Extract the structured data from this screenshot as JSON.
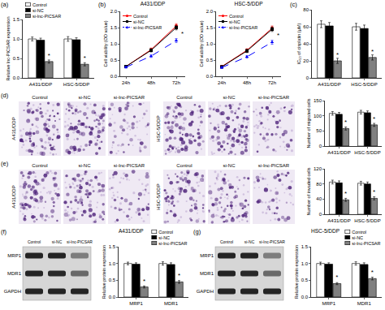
{
  "chart_data": [
    {
      "type": "bar",
      "panel": "(a)",
      "y_label": "Relative lnc-PICSAR expression",
      "categories": [
        "A431/DDP",
        "HSC-5/DDP"
      ],
      "series": [
        {
          "name": "Control",
          "color": "#ffffff",
          "values": [
            1.0,
            1.0
          ],
          "errors": [
            0.05,
            0.06
          ]
        },
        {
          "name": "si-NC",
          "color": "#000000",
          "values": [
            0.97,
            0.98
          ],
          "errors": [
            0.05,
            0.05
          ]
        },
        {
          "name": "si-lnc-PICSAR",
          "color": "#808080",
          "values": [
            0.42,
            0.35
          ],
          "errors": [
            0.04,
            0.04
          ]
        }
      ],
      "ylim": [
        0,
        1.5
      ],
      "yticks": [
        {
          "value": 0,
          "label": "0.0"
        },
        {
          "value": 0.5,
          "label": "0.5"
        },
        {
          "value": 1,
          "label": "1.0"
        },
        {
          "value": 1.5,
          "label": "1.5"
        }
      ],
      "legend": "upper left",
      "annotations": [
        {
          "text": "*",
          "category": "A431/DDP",
          "series": "si-lnc-PICSAR"
        },
        {
          "text": "*",
          "category": "HSC-5/DDP",
          "series": "si-lnc-PICSAR"
        }
      ]
    },
    {
      "type": "line",
      "panel": "(b)",
      "title": "A431/DDP",
      "y_label": "Cell viability (OD value)",
      "categories": [
        "24h",
        "48h",
        "72h"
      ],
      "series": [
        {
          "name": "Control",
          "color": "#ff0000",
          "marker": "circle",
          "line_style": "solid",
          "values": [
            0.3,
            0.82,
            1.55
          ],
          "errors": [
            0.03,
            0.05,
            0.07
          ]
        },
        {
          "name": "si-NC",
          "color": "#000000",
          "marker": "square",
          "line_style": "solid",
          "values": [
            0.3,
            0.8,
            1.5
          ],
          "errors": [
            0.03,
            0.05,
            0.07
          ]
        },
        {
          "name": "si-lnc-PICSAR",
          "color": "#0000ff",
          "marker": "triangle",
          "line_style": "dashed",
          "values": [
            0.28,
            0.62,
            1.1
          ],
          "errors": [
            0.03,
            0.04,
            0.06
          ]
        }
      ],
      "ylim": [
        0,
        2
      ],
      "yticks": [
        {
          "value": 0,
          "label": "0.0"
        },
        {
          "value": 0.5,
          "label": "0.5"
        },
        {
          "value": 1,
          "label": "1.0"
        },
        {
          "value": 1.5,
          "label": "1.5"
        },
        {
          "value": 2,
          "label": "2.0"
        }
      ],
      "legend": "upper left",
      "annotations": [
        {
          "text": "*",
          "category": "72h",
          "series": "si-lnc-PICSAR"
        }
      ]
    },
    {
      "type": "line",
      "title": "HSC-5/DDP",
      "y_label": "Cell viability (OD value)",
      "categories": [
        "24h",
        "48h",
        "72h"
      ],
      "series": [
        {
          "name": "Control",
          "color": "#ff0000",
          "marker": "circle",
          "line_style": "solid",
          "values": [
            0.3,
            0.8,
            1.48
          ],
          "errors": [
            0.03,
            0.05,
            0.07
          ]
        },
        {
          "name": "si-NC",
          "color": "#000000",
          "marker": "square",
          "line_style": "solid",
          "values": [
            0.29,
            0.78,
            1.45
          ],
          "errors": [
            0.03,
            0.05,
            0.07
          ]
        },
        {
          "name": "si-lnc-PICSAR",
          "color": "#0000ff",
          "marker": "triangle",
          "line_style": "dashed",
          "values": [
            0.27,
            0.6,
            1.05
          ],
          "errors": [
            0.03,
            0.04,
            0.06
          ]
        }
      ],
      "ylim": [
        0,
        2
      ],
      "yticks": [
        {
          "value": 0,
          "label": "0.0"
        },
        {
          "value": 0.5,
          "label": "0.5"
        },
        {
          "value": 1,
          "label": "1.0"
        },
        {
          "value": 1.5,
          "label": "1.5"
        },
        {
          "value": 2,
          "label": "2.0"
        }
      ],
      "legend": "upper left",
      "annotations": [
        {
          "text": "*",
          "category": "72h",
          "series": "si-lnc-PICSAR"
        }
      ]
    },
    {
      "type": "bar",
      "panel": "(c)",
      "y_label": "IC₅₀ of cisplatin (μM)",
      "categories": [
        "A431/DDP",
        "HSC-5/DDP"
      ],
      "series": [
        {
          "name": "Control",
          "color": "#ffffff",
          "values": [
            63,
            60
          ],
          "errors": [
            4,
            4
          ]
        },
        {
          "name": "si-NC",
          "color": "#000000",
          "values": [
            61,
            58
          ],
          "errors": [
            4,
            4
          ]
        },
        {
          "name": "si-lnc-PICSAR",
          "color": "#808080",
          "values": [
            20,
            24
          ],
          "errors": [
            3,
            3
          ]
        }
      ],
      "ylim": [
        0,
        80
      ],
      "yticks": [
        0,
        20,
        40,
        60,
        80
      ],
      "annotations": [
        {
          "text": "*",
          "category": "A431/DDP",
          "series": "si-lnc-PICSAR"
        },
        {
          "text": "*",
          "category": "HSC-5/DDP",
          "series": "si-lnc-PICSAR"
        }
      ]
    },
    {
      "type": "bar",
      "y_label": "Number of migrated cells",
      "categories": [
        "A431/DDP",
        "HSC-5/DDP"
      ],
      "series": [
        {
          "name": "Control",
          "color": "#ffffff",
          "values": [
            108,
            112
          ],
          "errors": [
            6,
            6
          ]
        },
        {
          "name": "si-NC",
          "color": "#000000",
          "values": [
            105,
            110
          ],
          "errors": [
            6,
            6
          ]
        },
        {
          "name": "si-lnc-PICSAR",
          "color": "#808080",
          "values": [
            58,
            70
          ],
          "errors": [
            5,
            5
          ]
        }
      ],
      "ylim": [
        0,
        150
      ],
      "yticks": [
        0,
        50,
        100,
        150
      ],
      "annotations": [
        {
          "text": "*",
          "category": "A431/DDP",
          "series": "si-lnc-PICSAR"
        },
        {
          "text": "*",
          "category": "HSC-5/DDP",
          "series": "si-lnc-PICSAR"
        }
      ]
    },
    {
      "type": "bar",
      "y_label": "Number of invaded cells",
      "categories": [
        "A431/DDP",
        "HSC-5/DDP"
      ],
      "series": [
        {
          "name": "Control",
          "color": "#ffffff",
          "values": [
            85,
            82
          ],
          "errors": [
            5,
            5
          ]
        },
        {
          "name": "si-NC",
          "color": "#000000",
          "values": [
            83,
            80
          ],
          "errors": [
            5,
            5
          ]
        },
        {
          "name": "si-lnc-PICSAR",
          "color": "#808080",
          "values": [
            38,
            42
          ],
          "errors": [
            4,
            4
          ]
        }
      ],
      "ylim": [
        0,
        120
      ],
      "yticks": [
        0,
        40,
        80,
        120
      ],
      "annotations": [
        {
          "text": "*",
          "category": "A431/DDP",
          "series": "si-lnc-PICSAR"
        },
        {
          "text": "*",
          "category": "HSC-5/DDP",
          "series": "si-lnc-PICSAR"
        }
      ]
    },
    {
      "type": "bar",
      "title": "A431/DDP",
      "y_label": "Relative protein expression",
      "categories": [
        "MRP1",
        "MDR1"
      ],
      "series": [
        {
          "name": "Control",
          "color": "#ffffff",
          "values": [
            1.0,
            1.0
          ],
          "errors": [
            0.04,
            0.05
          ]
        },
        {
          "name": "si-NC",
          "color": "#000000",
          "values": [
            0.98,
            0.97
          ],
          "errors": [
            0.04,
            0.05
          ]
        },
        {
          "name": "si-lnc-PICSAR",
          "color": "#808080",
          "values": [
            0.3,
            0.45
          ],
          "errors": [
            0.03,
            0.04
          ]
        }
      ],
      "ylim": [
        0,
        1.5
      ],
      "yticks": [
        {
          "value": 0,
          "label": "0.0"
        },
        {
          "value": 0.5,
          "label": "0.5"
        },
        {
          "value": 1,
          "label": "1.0"
        },
        {
          "value": 1.5,
          "label": "1.5"
        }
      ],
      "legend": "upper right",
      "annotations": [
        {
          "text": "*",
          "category": "MRP1",
          "series": "si-lnc-PICSAR"
        },
        {
          "text": "*",
          "category": "MDR1",
          "series": "si-lnc-PICSAR"
        }
      ]
    },
    {
      "type": "bar",
      "title": "HSC-5/DDP",
      "y_label": "Relative protein expression",
      "categories": [
        "MRP1",
        "MDR1"
      ],
      "series": [
        {
          "name": "Control",
          "color": "#ffffff",
          "values": [
            1.0,
            1.0
          ],
          "errors": [
            0.04,
            0.05
          ]
        },
        {
          "name": "si-NC",
          "color": "#000000",
          "values": [
            0.98,
            0.97
          ],
          "errors": [
            0.04,
            0.05
          ]
        },
        {
          "name": "si-lnc-PICSAR",
          "color": "#808080",
          "values": [
            0.4,
            0.55
          ],
          "errors": [
            0.03,
            0.04
          ]
        }
      ],
      "ylim": [
        0,
        1.5
      ],
      "yticks": [
        {
          "value": 0,
          "label": "0.0"
        },
        {
          "value": 0.5,
          "label": "0.5"
        },
        {
          "value": 1,
          "label": "1.0"
        },
        {
          "value": 1.5,
          "label": "1.5"
        }
      ],
      "legend": "upper right",
      "annotations": [
        {
          "text": "*",
          "category": "MRP1",
          "series": "si-lnc-PICSAR"
        },
        {
          "text": "*",
          "category": "MDR1",
          "series": "si-lnc-PICSAR"
        }
      ]
    }
  ],
  "micrographs": [
    {
      "panel": "(d)",
      "columns": [
        "Control",
        "si-NC",
        "si-lnc-PICSAR"
      ],
      "groups": [
        "A431/DDP",
        "HSC-5/DDP"
      ]
    },
    {
      "panel": "(e)",
      "columns": [
        "Control",
        "si-NC",
        "si-lnc-PICSAR"
      ],
      "groups": [
        "A431/DDP",
        "HSC-5/DDP"
      ]
    }
  ],
  "blots": [
    {
      "panel": "(f)",
      "columns": [
        "Control",
        "si-NC",
        "si-lnc-PICSAR"
      ],
      "rows": [
        "MRP1",
        "MDR1",
        "GAPDH"
      ]
    },
    {
      "panel": "(g)",
      "columns": [
        "Control",
        "si-NC",
        "si-lnc-PICSAR"
      ],
      "rows": [
        "MRP1",
        "MDR1",
        "GAPDH"
      ]
    }
  ]
}
